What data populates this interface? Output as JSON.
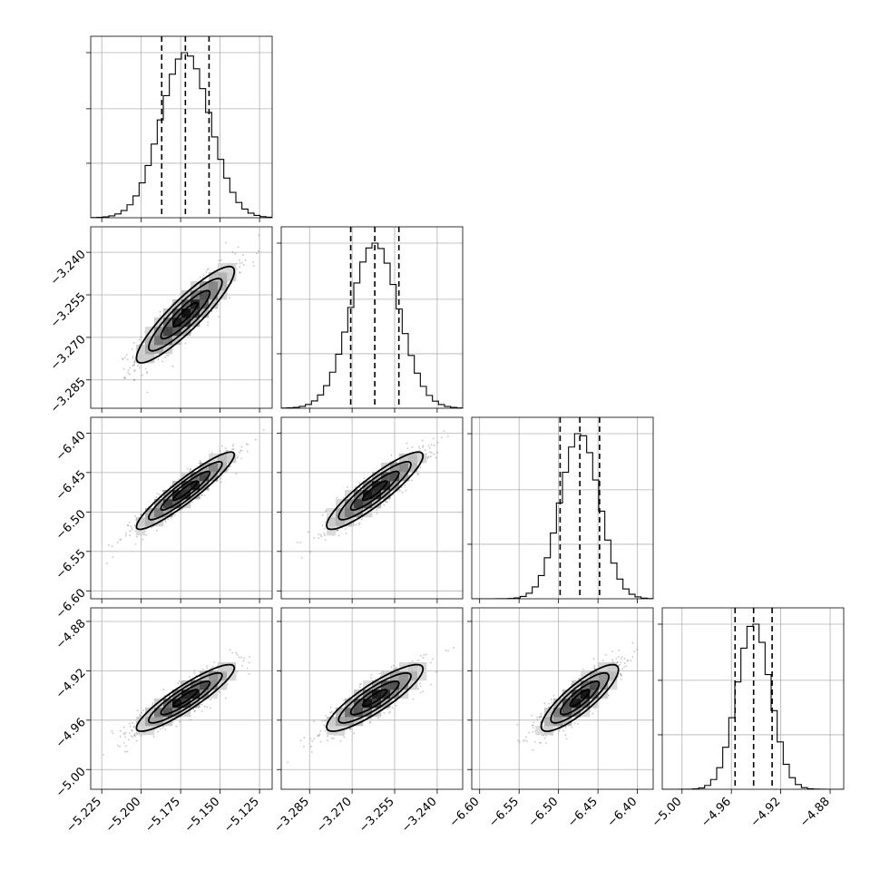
{
  "chart_data": {
    "type": "corner",
    "colors": {
      "line": "#000000",
      "grid": "#b0b0b0",
      "points": "#555555",
      "fill_light": "#f5f5f5",
      "fill_dark": "#000000"
    },
    "grid": true,
    "quantiles": [
      0.16,
      0.5,
      0.84
    ],
    "parameters": [
      {
        "mean": -5.172,
        "sd": 0.0155,
        "range": [
          -5.232,
          -5.117
        ],
        "ticks": [
          "−5.225",
          "−5.200",
          "−5.175",
          "−5.150",
          "−5.125"
        ],
        "tick_values": [
          -5.225,
          -5.2,
          -5.175,
          -5.15,
          -5.125
        ]
      },
      {
        "mean": -3.262,
        "sd": 0.0085,
        "range": [
          -3.295,
          -3.231
        ],
        "ticks": [
          "−3.285",
          "−3.270",
          "−3.255",
          "−3.240"
        ],
        "tick_values": [
          -3.285,
          -3.27,
          -3.255,
          -3.24
        ]
      },
      {
        "mean": -6.473,
        "sd": 0.0245,
        "range": [
          -6.61,
          -6.38
        ],
        "ticks": [
          "−6.60",
          "−6.55",
          "−6.50",
          "−6.45",
          "−6.40"
        ],
        "tick_values": [
          -6.6,
          -6.55,
          -6.5,
          -6.45,
          -6.4
        ]
      },
      {
        "mean": -4.942,
        "sd": 0.0135,
        "range": [
          -5.016,
          -4.869
        ],
        "ticks": [
          "−5.00",
          "−4.96",
          "−4.92",
          "−4.88"
        ],
        "tick_values": [
          -5.0,
          -4.96,
          -4.92,
          -4.88
        ]
      }
    ],
    "quantile_values": [
      [
        -5.187,
        -5.172,
        -5.157
      ],
      [
        -3.2705,
        -3.262,
        -3.2535
      ],
      [
        -6.498,
        -6.473,
        -6.448
      ],
      [
        -4.957,
        -4.942,
        -4.927
      ]
    ],
    "correlations": [
      [
        1.0,
        0.9,
        0.93,
        0.9
      ],
      [
        0.9,
        1.0,
        0.9,
        0.87
      ],
      [
        0.93,
        0.9,
        1.0,
        0.85
      ],
      [
        0.9,
        0.87,
        0.85,
        1.0
      ]
    ]
  }
}
